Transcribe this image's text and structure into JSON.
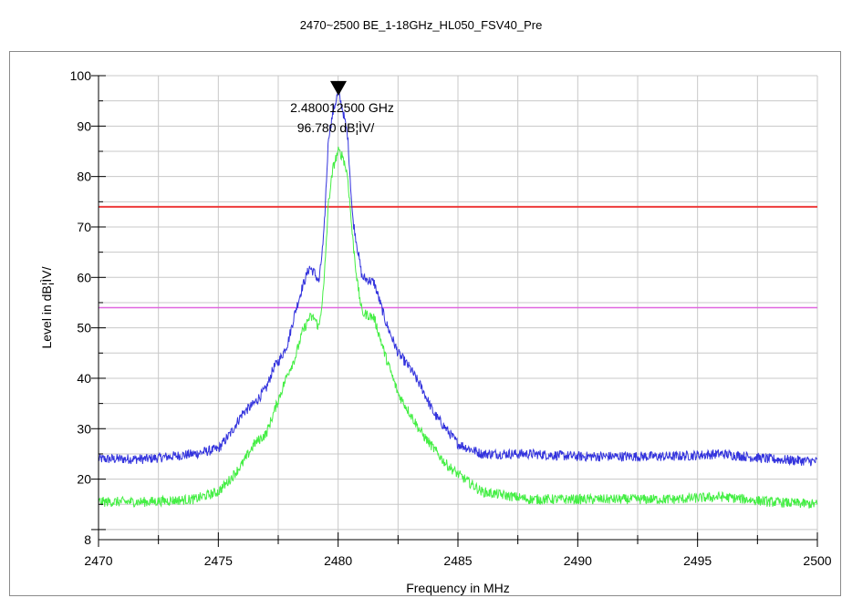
{
  "chart_data": {
    "type": "line",
    "title": "2470~2500 BE_1-18GHz_HL050_FSV40_Pre",
    "xlabel": "Frequency in MHz",
    "ylabel": "Level in dB¦ÌV/",
    "xlim": [
      2470,
      2500
    ],
    "ylim": [
      8,
      100
    ],
    "x_ticks": [
      2470,
      2475,
      2480,
      2485,
      2490,
      2495,
      2500
    ],
    "y_ticks": [
      8,
      20,
      30,
      40,
      50,
      60,
      70,
      80,
      90,
      100
    ],
    "grid": true,
    "limit_lines": [
      {
        "value": 74,
        "color": "#ee3b3b"
      },
      {
        "value": 54,
        "color": "#e066e0"
      }
    ],
    "series": [
      {
        "color": "#3333dd",
        "x": [
          2470,
          2472,
          2474,
          2475,
          2475.5,
          2476,
          2476.5,
          2477,
          2477.3,
          2477.6,
          2477.9,
          2478.2,
          2478.5,
          2478.8,
          2479,
          2479.2,
          2479.4,
          2479.6,
          2479.8,
          2480,
          2480.2,
          2480.4,
          2480.6,
          2480.8,
          2481,
          2481.5,
          2482,
          2482.5,
          2483,
          2483.5,
          2484,
          2484.5,
          2485,
          2486,
          2488,
          2490,
          2492,
          2494,
          2496,
          2498,
          2500
        ],
        "y": [
          24,
          24,
          25,
          26,
          29,
          33,
          35,
          38,
          42,
          44,
          47,
          53,
          58,
          62,
          61,
          59,
          68,
          88,
          93,
          96.8,
          93,
          88,
          72,
          66,
          60,
          59,
          51,
          45,
          42,
          38,
          33,
          30,
          27,
          25,
          25,
          24.5,
          24.5,
          24.5,
          25,
          24,
          23.5
        ]
      },
      {
        "color": "#44ee44",
        "x": [
          2470,
          2472,
          2474,
          2475,
          2475.5,
          2476,
          2476.5,
          2477,
          2477.3,
          2477.6,
          2477.9,
          2478.2,
          2478.5,
          2478.8,
          2479,
          2479.2,
          2479.4,
          2479.6,
          2479.8,
          2480,
          2480.2,
          2480.4,
          2480.6,
          2480.8,
          2481,
          2481.5,
          2482,
          2482.5,
          2483,
          2483.5,
          2484,
          2484.5,
          2485,
          2486,
          2488,
          2490,
          2492,
          2494,
          2496,
          2498,
          2500
        ],
        "y": [
          15.5,
          15.5,
          16,
          17.5,
          20,
          23,
          27,
          29,
          33,
          37,
          41,
          44,
          49,
          52,
          52,
          50,
          58,
          75,
          82,
          85,
          84,
          80,
          68,
          59,
          53,
          52,
          44,
          37,
          33,
          29,
          26,
          23,
          21,
          17.5,
          16,
          16,
          16,
          16,
          16.5,
          15.5,
          15
        ]
      }
    ],
    "marker": {
      "x": 2480.0125,
      "y": 96.78,
      "frequency_label": "2.480012500 GHz",
      "level_label": "96.780 dB¦ÌV/"
    }
  }
}
